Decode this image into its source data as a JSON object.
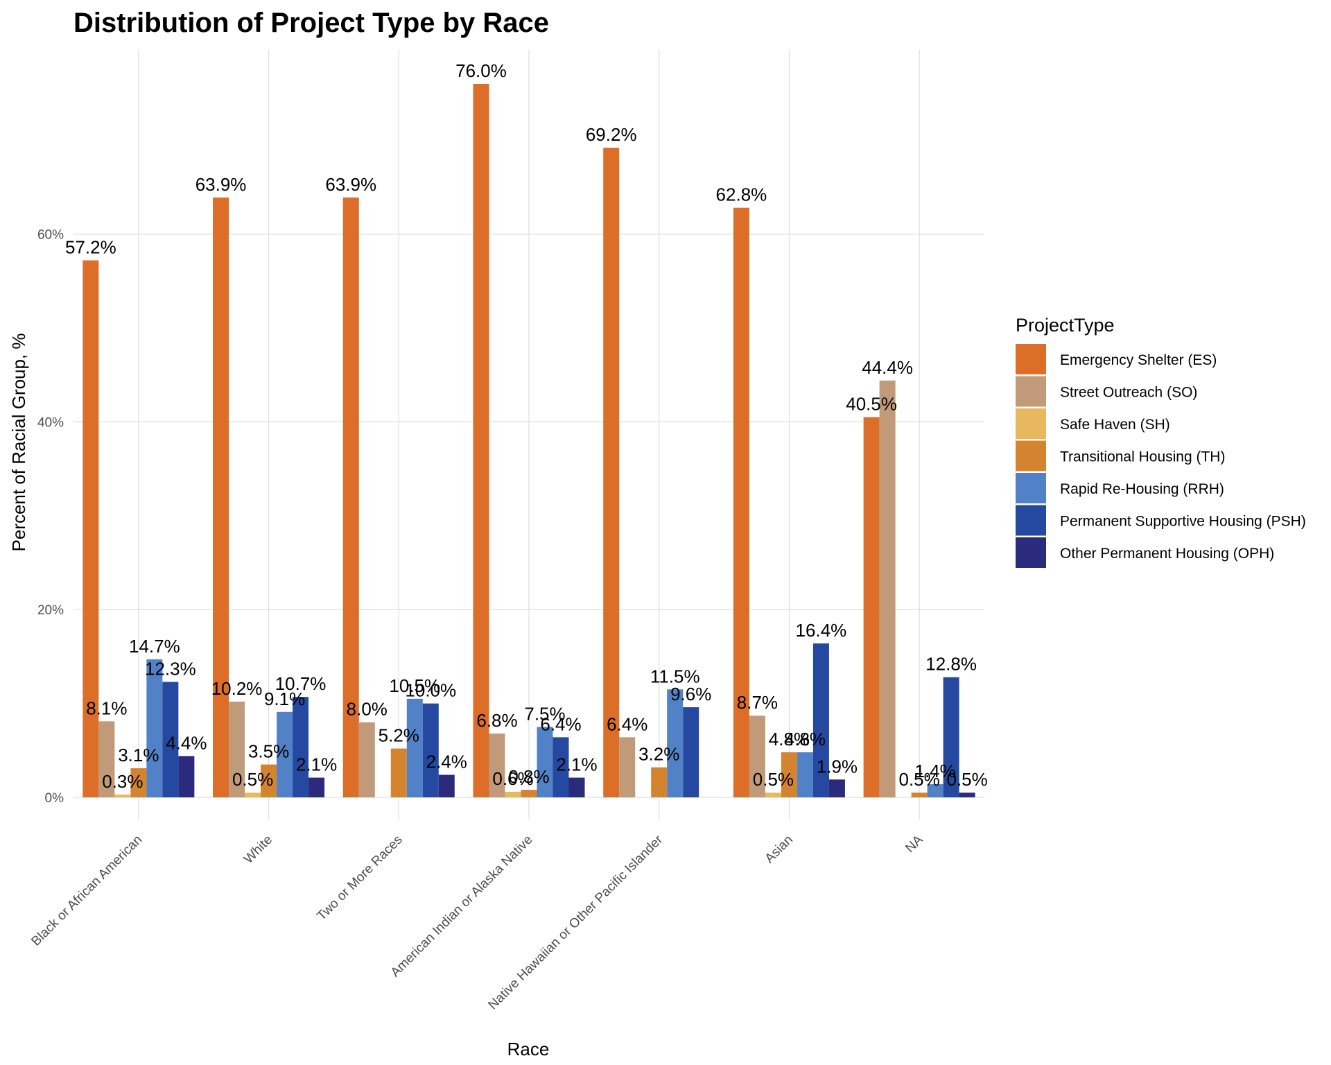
{
  "chart_data": {
    "type": "bar",
    "title": "Distribution of Project Type by Race",
    "xlabel": "Race",
    "ylabel": "Percent of Racial Group, %",
    "ylim": [
      0,
      80
    ],
    "y_ticks": [
      0,
      20,
      40,
      60
    ],
    "y_tick_labels": [
      "0%",
      "20%",
      "40%",
      "60%"
    ],
    "grid": true,
    "legend_position": "right",
    "legend_title": "ProjectType",
    "categories": [
      "Black or African American",
      "White",
      "Two or More Races",
      "American Indian or Alaska Native",
      "Native Hawaiian or Other Pacific Islander",
      "Asian",
      "NA"
    ],
    "series": [
      {
        "name": "Emergency Shelter (ES)",
        "color": "#DD6E28",
        "values": [
          57.2,
          63.9,
          63.9,
          76.0,
          69.2,
          62.8,
          40.5
        ],
        "labels": [
          "57.2%",
          "63.9%",
          "63.9%",
          "76.0%",
          "69.2%",
          "62.8%",
          "40.5%"
        ]
      },
      {
        "name": "Street Outreach (SO)",
        "color": "#C19B79",
        "values": [
          8.1,
          10.2,
          8.0,
          6.8,
          6.4,
          8.7,
          44.4
        ],
        "labels": [
          "8.1%",
          "10.2%",
          "8.0%",
          "6.8%",
          "6.4%",
          "8.7%",
          "44.4%"
        ]
      },
      {
        "name": "Safe Haven (SH)",
        "color": "#E8B85E",
        "values": [
          0.3,
          0.5,
          null,
          0.6,
          null,
          0.5,
          null
        ],
        "labels": [
          "0.3%",
          "0.5%",
          null,
          "0.6%",
          null,
          "0.5%",
          null
        ]
      },
      {
        "name": "Transitional Housing (TH)",
        "color": "#D4842F",
        "values": [
          3.1,
          3.5,
          5.2,
          0.8,
          3.2,
          4.8,
          0.5
        ],
        "labels": [
          "3.1%",
          "3.5%",
          "5.2%",
          "0.8%",
          "3.2%",
          "4.8%",
          "0.5%"
        ]
      },
      {
        "name": "Rapid Re-Housing (RRH)",
        "color": "#5182C7",
        "values": [
          14.7,
          9.1,
          10.5,
          7.5,
          11.5,
          4.8,
          1.4
        ],
        "labels": [
          "14.7%",
          "9.1%",
          "10.5%",
          "7.5%",
          "11.5%",
          "4.8%",
          "1.4%"
        ]
      },
      {
        "name": "Permanent Supportive Housing (PSH)",
        "color": "#2549A0",
        "values": [
          12.3,
          10.7,
          10.0,
          6.4,
          9.6,
          16.4,
          12.8
        ],
        "labels": [
          "12.3%",
          "10.7%",
          "10.0%",
          "6.4%",
          "9.6%",
          "16.4%",
          "12.8%"
        ]
      },
      {
        "name": "Other Permanent Housing (OPH)",
        "color": "#2C2A7C",
        "values": [
          4.4,
          2.1,
          2.4,
          2.1,
          null,
          1.9,
          0.5
        ],
        "labels": [
          "4.4%",
          "2.1%",
          "2.4%",
          "2.1%",
          null,
          "1.9%",
          "0.5%"
        ]
      }
    ]
  }
}
